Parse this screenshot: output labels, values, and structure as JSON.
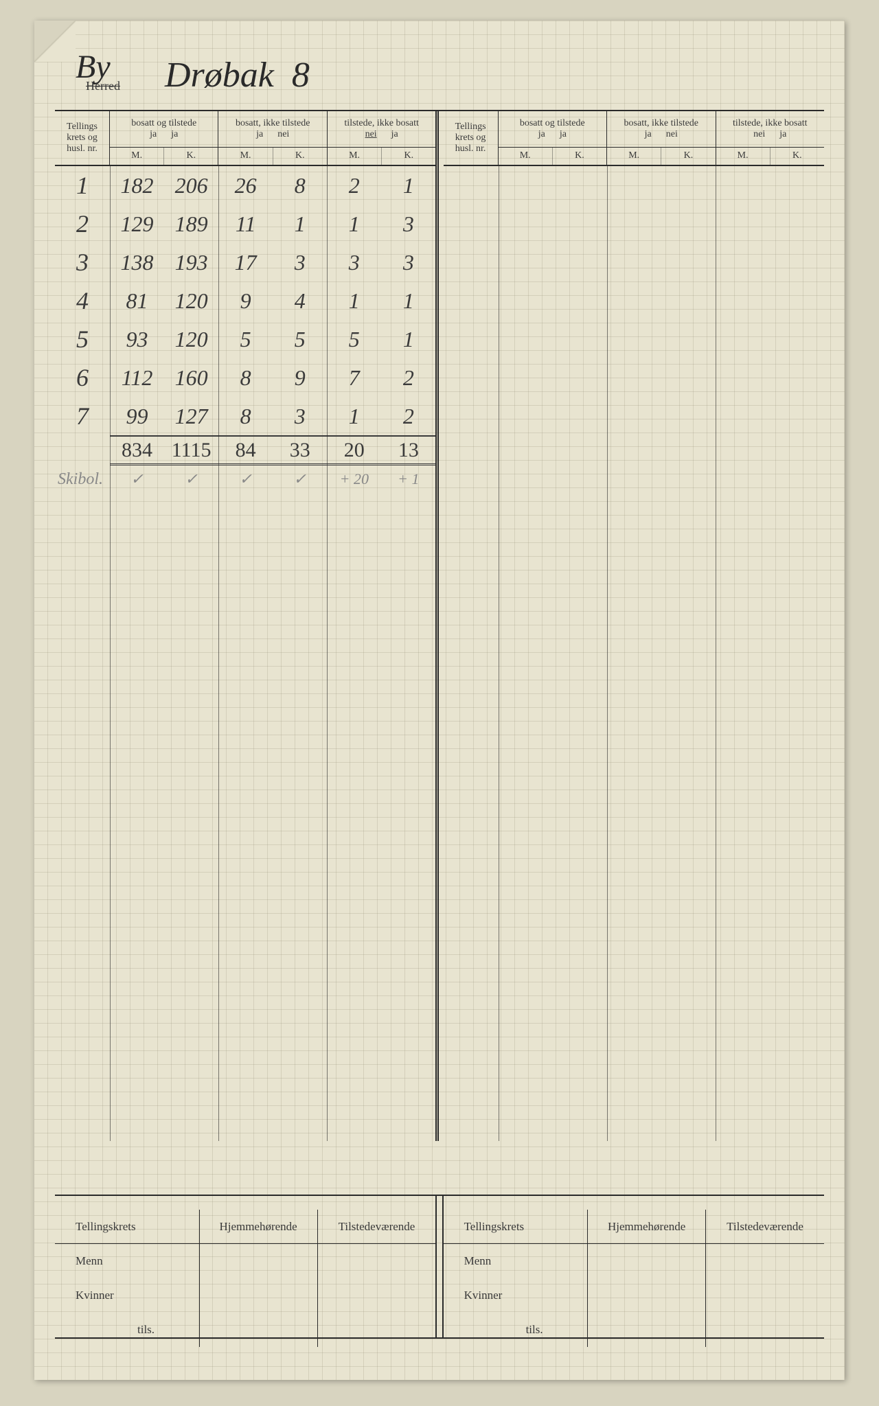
{
  "page": {
    "background_color": "#d8d4c0",
    "paper_color": "#e8e4d0",
    "grid_color": "rgba(150,145,120,0.25)",
    "ink_color": "#2a2a2a",
    "handwriting_color": "#3a3a3a",
    "pencil_color": "#888888"
  },
  "header": {
    "herred_label": "Herred",
    "by_label": "By",
    "location": "Drøbak",
    "number": "8"
  },
  "columns": {
    "krets_label": "Tellings krets og husl. nr.",
    "group1": {
      "title": "bosatt og tilstede",
      "ja1": "ja",
      "ja2": "ja"
    },
    "group2": {
      "title": "bosatt, ikke tilstede",
      "ja": "ja",
      "nei": "nei"
    },
    "group3": {
      "title": "tilstede, ikke bosatt",
      "nei": "nei",
      "ja": "ja"
    },
    "m": "M.",
    "k": "K."
  },
  "rows": [
    {
      "n": "1",
      "c": [
        "182",
        "206",
        "26",
        "8",
        "2",
        "1"
      ]
    },
    {
      "n": "2",
      "c": [
        "129",
        "189",
        "11",
        "1",
        "1",
        "3"
      ]
    },
    {
      "n": "3",
      "c": [
        "138",
        "193",
        "17",
        "3",
        "3",
        "3"
      ]
    },
    {
      "n": "4",
      "c": [
        "81",
        "120",
        "9",
        "4",
        "1",
        "1"
      ]
    },
    {
      "n": "5",
      "c": [
        "93",
        "120",
        "5",
        "5",
        "5",
        "1"
      ]
    },
    {
      "n": "6",
      "c": [
        "112",
        "160",
        "8",
        "9",
        "7",
        "2"
      ]
    },
    {
      "n": "7",
      "c": [
        "99",
        "127",
        "8",
        "3",
        "1",
        "2"
      ]
    }
  ],
  "totals": [
    "834",
    "1115",
    "84",
    "33",
    "20",
    "13"
  ],
  "pencil": {
    "label": "Skibol.",
    "marks": [
      "✓",
      "✓",
      "✓",
      "✓",
      "+ 20",
      "+ 1"
    ]
  },
  "bottom": {
    "tellingskrets": "Tellingskrets",
    "hjemme": "Hjemmehørende",
    "tilstede": "Tilstedeværende",
    "menn": "Menn",
    "kvinner": "Kvinner",
    "tils": "tils."
  }
}
